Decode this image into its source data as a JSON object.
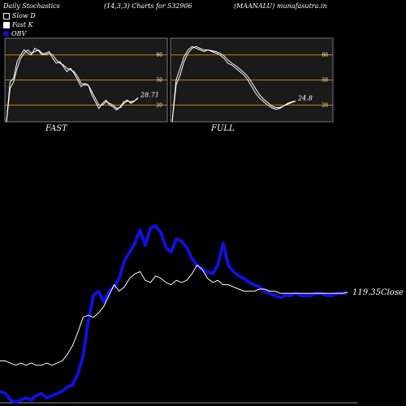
{
  "header": {
    "left": "Daily Stochastics",
    "center": "(14,3,3) Charts for 532906",
    "right": "(MAANALU) munafasutra.in"
  },
  "legend": [
    {
      "label": "Slow  D",
      "style": "box"
    },
    {
      "label": "Fast K",
      "style": "filled-box"
    },
    {
      "label": "OBV",
      "style": "dot",
      "color": "#1010dd"
    }
  ],
  "chart_data": [
    {
      "type": "line",
      "panel": "stochastics-fast",
      "title": "FAST",
      "ylim": [
        0,
        100
      ],
      "yticks": [
        80,
        50,
        20
      ],
      "hlines": [
        80,
        50,
        20
      ],
      "last_value_label": "28.71",
      "series": [
        {
          "values": [
            0,
            48,
            52,
            72,
            80,
            86,
            82,
            80,
            88,
            85,
            80,
            82,
            84,
            76,
            70,
            72,
            66,
            60,
            64,
            58,
            50,
            42,
            46,
            44,
            32,
            24,
            16,
            22,
            26,
            20,
            18,
            14,
            18,
            24,
            26,
            22,
            25,
            28
          ]
        },
        {
          "values": [
            0,
            40,
            48,
            64,
            76,
            82,
            86,
            82,
            84,
            86,
            82,
            80,
            82,
            80,
            74,
            70,
            68,
            64,
            62,
            60,
            54,
            46,
            44,
            44,
            36,
            28,
            20,
            20,
            24,
            22,
            20,
            16,
            17,
            22,
            25,
            24,
            25,
            28.71
          ]
        }
      ]
    },
    {
      "type": "line",
      "panel": "stochastics-full",
      "title": "FULL",
      "ylim": [
        0,
        100
      ],
      "yticks": [
        80,
        50,
        20
      ],
      "hlines": [
        80,
        50,
        20
      ],
      "last_value_label": "24.8",
      "series": [
        {
          "values": [
            0,
            50,
            64,
            78,
            86,
            90,
            88,
            86,
            84,
            86,
            84,
            82,
            80,
            76,
            70,
            68,
            64,
            60,
            56,
            50,
            42,
            34,
            28,
            24,
            20,
            17,
            15,
            16,
            19,
            22,
            24,
            24.8
          ]
        },
        {
          "values": [
            0,
            44,
            56,
            72,
            82,
            88,
            90,
            88,
            86,
            86,
            85,
            84,
            82,
            79,
            74,
            70,
            67,
            63,
            59,
            54,
            47,
            39,
            32,
            27,
            23,
            19,
            17,
            17,
            19,
            21,
            23,
            24.8
          ]
        }
      ]
    },
    {
      "type": "line",
      "panel": "price-obv",
      "last_value_label": "119.35Close",
      "series": [
        {
          "name": "OBV",
          "color": "#1010dd",
          "values": [
            6,
            5,
            2,
            1,
            2,
            3,
            2,
            4,
            5,
            3,
            4,
            5,
            6,
            8,
            9,
            14,
            22,
            38,
            50,
            52,
            47,
            52,
            54,
            58,
            66,
            70,
            74,
            80,
            73,
            81,
            82,
            79,
            72,
            70,
            76,
            75,
            72,
            67,
            64,
            62,
            61,
            60,
            64,
            74,
            64,
            61,
            59,
            58,
            56,
            55,
            54,
            52,
            51,
            50,
            49,
            50,
            50,
            51,
            50,
            50,
            50,
            51,
            51,
            50,
            50,
            51,
            51,
            51
          ]
        },
        {
          "name": "Close",
          "color": "#ffffff",
          "values": [
            20,
            20,
            19,
            18,
            19,
            18,
            19,
            18,
            18,
            19,
            18,
            19,
            20,
            23,
            27,
            33,
            40,
            41,
            40,
            42,
            45,
            50,
            55,
            52,
            54,
            58,
            60,
            61,
            57,
            56,
            59,
            58,
            56,
            55,
            57,
            56,
            57,
            60,
            64,
            62,
            58,
            56,
            57,
            55,
            55,
            54,
            53,
            52,
            52,
            52,
            53,
            53,
            52,
            52,
            51,
            51,
            51,
            51,
            51,
            51,
            51,
            51,
            51,
            51,
            51,
            51,
            51,
            51.5
          ]
        }
      ]
    }
  ]
}
